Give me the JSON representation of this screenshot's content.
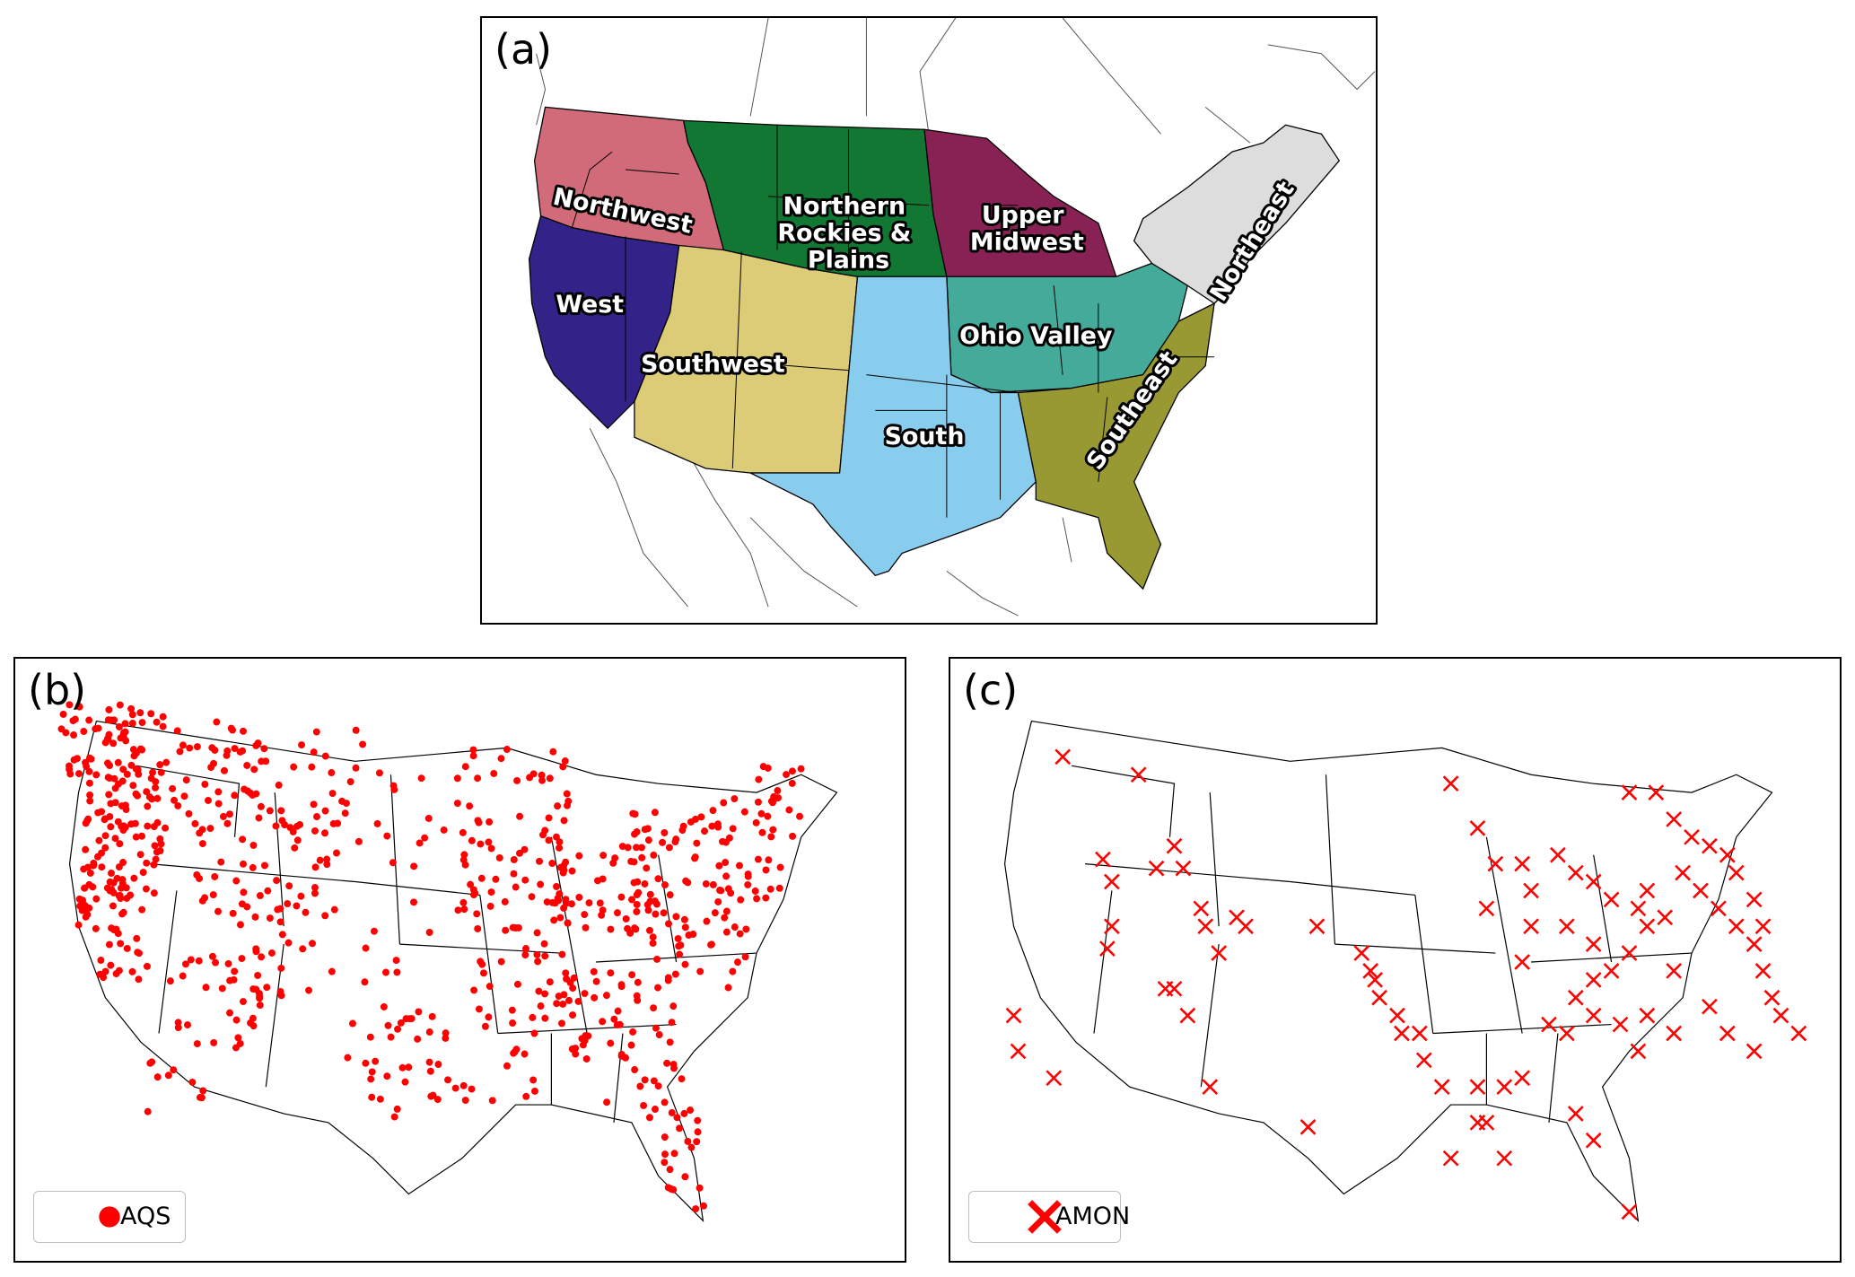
{
  "figure": {
    "panels": [
      {
        "id": "a",
        "label": "(a)"
      },
      {
        "id": "b",
        "label": "(b)",
        "legend": "AQS"
      },
      {
        "id": "c",
        "label": "(c)",
        "legend": "AMON"
      }
    ],
    "regions": [
      {
        "name": "Northwest",
        "color": "#d16b79"
      },
      {
        "name": "West",
        "color": "#332288"
      },
      {
        "name": "Southwest",
        "color": "#ddcc77"
      },
      {
        "name": "Northern Rockies & Plains",
        "color": "#117733"
      },
      {
        "name": "Upper Midwest",
        "color": "#882255"
      },
      {
        "name": "Ohio Valley",
        "color": "#44aa99"
      },
      {
        "name": "South",
        "color": "#88ccee"
      },
      {
        "name": "Southeast",
        "color": "#999933"
      },
      {
        "name": "Northeast",
        "color": "#dddddd"
      }
    ],
    "marker_color": "#ff0000",
    "region_label_lines": {
      "northwest": [
        "Northwest"
      ],
      "west": [
        "West"
      ],
      "southwest": [
        "Southwest"
      ],
      "nrp": [
        "Northern",
        "Rockies &",
        "Plains"
      ],
      "upper_midwest": [
        "Upper",
        "Midwest"
      ],
      "ohio_valley": [
        "Ohio Valley"
      ],
      "south": [
        "South"
      ],
      "southeast": [
        "Southeast"
      ],
      "northeast": [
        "Northeast"
      ]
    }
  }
}
